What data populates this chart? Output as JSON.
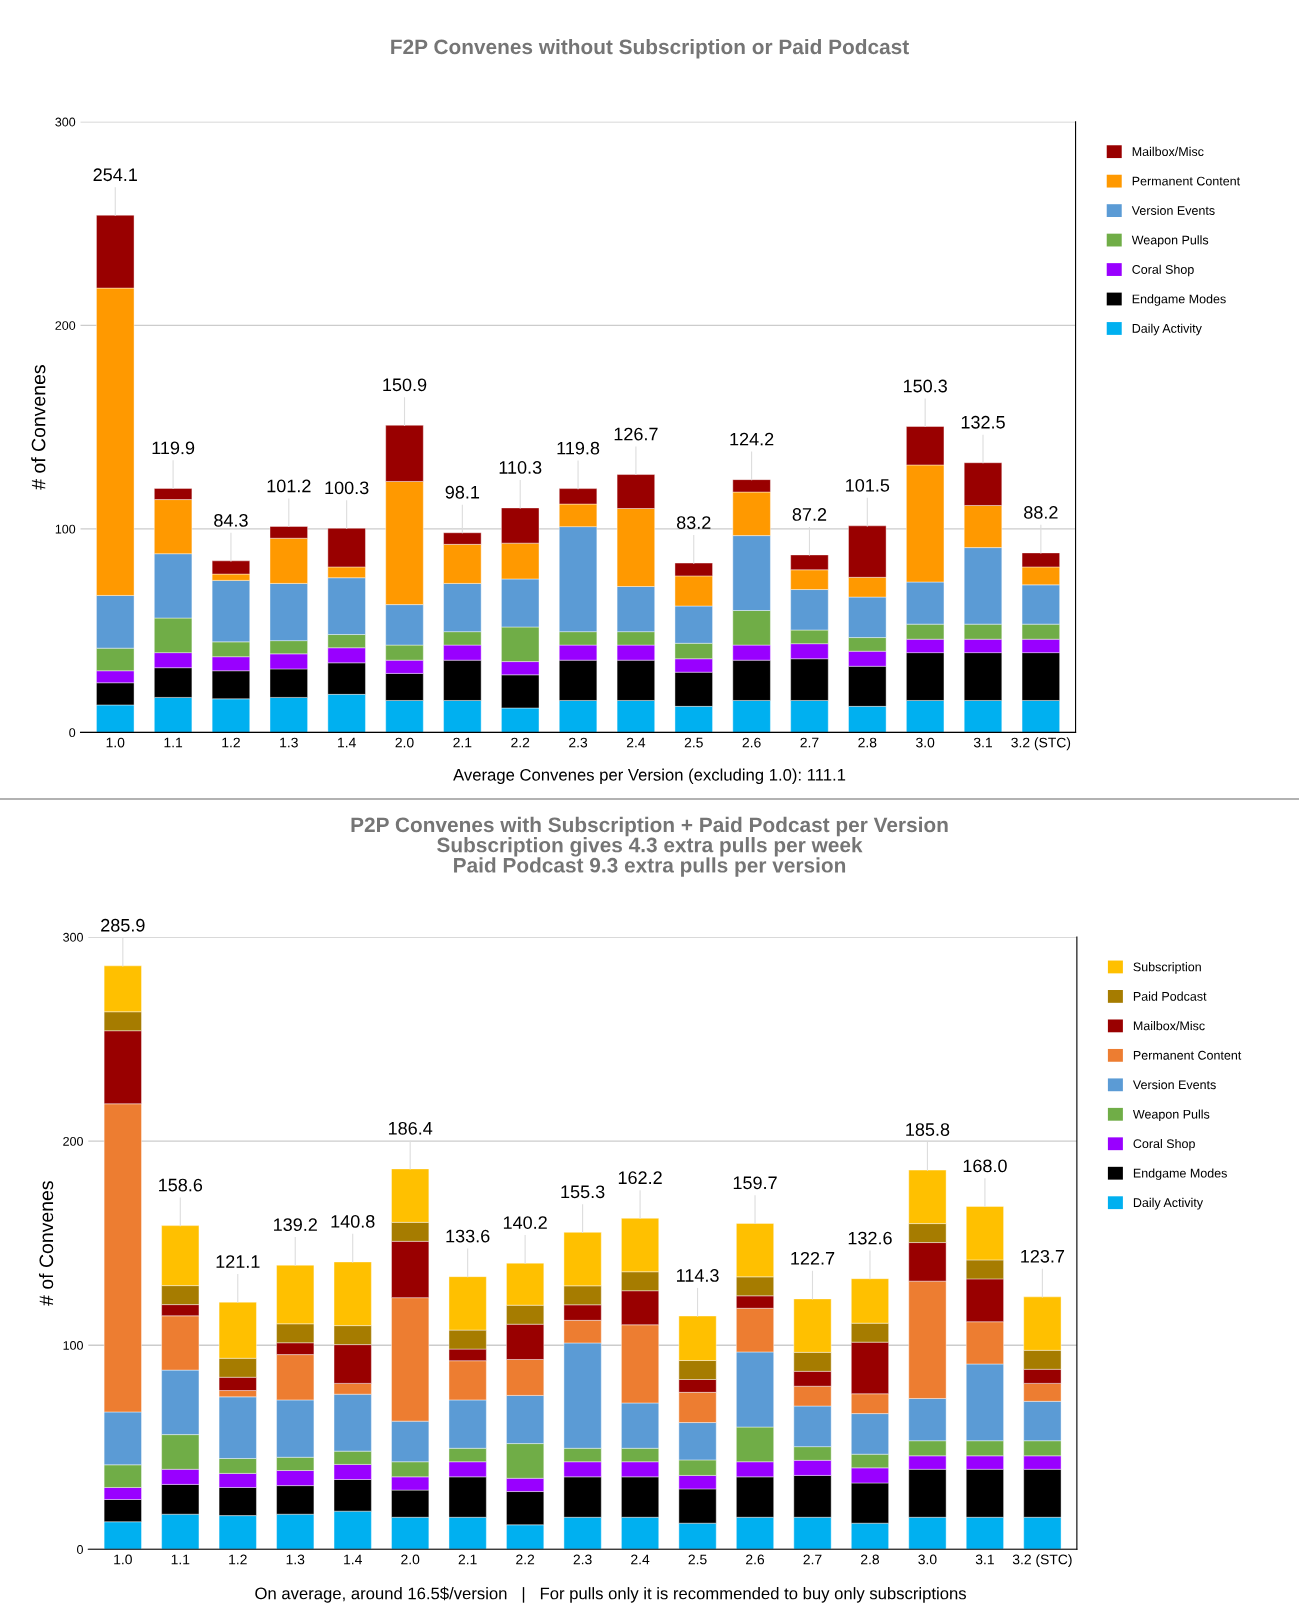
{
  "chart_data": [
    {
      "type": "bar",
      "stacked": true,
      "title": "F2P Convenes without Subscription or Paid Podcast",
      "ylabel": "# of Convenes",
      "categories": [
        "1.0",
        "1.1",
        "1.2",
        "1.3",
        "1.4",
        "2.0",
        "2.1",
        "2.2",
        "2.3",
        "2.4",
        "2.5",
        "2.6",
        "2.7",
        "2.8",
        "3.0",
        "3.1",
        "3.2 (STC)"
      ],
      "series": [
        {
          "name": "Daily Activity",
          "color": "#00b0f0",
          "values": [
            13.5,
            17.2,
            16.5,
            17.2,
            18.7,
            15.7,
            15.7,
            12.0,
            15.7,
            15.7,
            12.8,
            15.7,
            15.7,
            12.8,
            15.7,
            15.7,
            15.7
          ]
        },
        {
          "name": "Endgame Modes",
          "color": "#000000",
          "values": [
            10.9,
            14.6,
            13.8,
            14.0,
            15.5,
            13.3,
            19.8,
            16.3,
            19.8,
            19.8,
            16.8,
            19.8,
            20.5,
            19.7,
            23.5,
            23.5,
            23.5
          ]
        },
        {
          "name": "Coral Shop",
          "color": "#9900ff",
          "values": [
            5.9,
            7.4,
            6.9,
            7.4,
            7.4,
            6.5,
            7.4,
            6.5,
            7.4,
            7.4,
            6.6,
            7.4,
            7.4,
            7.4,
            6.6,
            6.6,
            6.6
          ]
        },
        {
          "name": "Weapon Pulls",
          "color": "#70ad47",
          "values": [
            11.1,
            17.0,
            7.3,
            6.5,
            6.5,
            7.4,
            6.6,
            17.0,
            6.6,
            6.6,
            7.6,
            17.0,
            6.7,
            6.7,
            7.4,
            7.4,
            7.4
          ]
        },
        {
          "name": "Version Events",
          "color": "#5b9bd5",
          "values": [
            25.9,
            31.6,
            30.2,
            28.1,
            27.9,
            19.9,
            23.7,
            23.6,
            51.6,
            22.2,
            18.3,
            36.8,
            19.9,
            19.9,
            20.7,
            37.6,
            19.3
          ]
        },
        {
          "name": "Permanent Content",
          "color": "#ff9900",
          "values": [
            151.0,
            26.6,
            3.1,
            22.2,
            5.3,
            60.5,
            19.2,
            17.6,
            11.1,
            38.3,
            14.8,
            21.4,
            9.7,
            9.7,
            57.5,
            20.7,
            8.8
          ]
        },
        {
          "name": "Mailbox/Misc",
          "color": "#990000",
          "values": [
            35.8,
            5.5,
            6.5,
            5.8,
            19.0,
            27.6,
            5.7,
            17.3,
            7.6,
            16.7,
            6.3,
            6.1,
            7.3,
            25.3,
            18.9,
            21.0,
            6.9
          ]
        }
      ],
      "totals": [
        "254.1",
        "119.9",
        "84.3",
        "101.2",
        "100.3",
        "150.9",
        "98.1",
        "110.3",
        "119.8",
        "126.7",
        "83.2",
        "124.2",
        "87.2",
        "101.5",
        "150.3",
        "132.5",
        "88.2"
      ],
      "ylim": [
        0,
        300
      ],
      "yticks": [
        0,
        100,
        200,
        300
      ],
      "grid": "y",
      "legend": "right",
      "annotations": [
        "Average Convenes per Version (excluding 1.0): 111.1"
      ]
    },
    {
      "type": "bar",
      "stacked": true,
      "title": "P2P Convenes with Subscription + Paid Podcast per Version\nSubscription gives 4.3 extra pulls per week\nPaid Podcast 9.3 extra pulls per version",
      "ylabel": "# of Convenes",
      "categories": [
        "1.0",
        "1.1",
        "1.2",
        "1.3",
        "1.4",
        "2.0",
        "2.1",
        "2.2",
        "2.3",
        "2.4",
        "2.5",
        "2.6",
        "2.7",
        "2.8",
        "3.0",
        "3.1",
        "3.2 (STC)"
      ],
      "series": [
        {
          "name": "Daily Activity",
          "color": "#00b0f0",
          "values": [
            13.5,
            17.2,
            16.5,
            17.2,
            18.7,
            15.7,
            15.7,
            12.0,
            15.7,
            15.7,
            12.8,
            15.7,
            15.7,
            12.8,
            15.7,
            15.7,
            15.7
          ]
        },
        {
          "name": "Endgame Modes",
          "color": "#000000",
          "values": [
            10.9,
            14.6,
            13.8,
            14.0,
            15.5,
            13.3,
            19.8,
            16.3,
            19.8,
            19.8,
            16.8,
            19.8,
            20.5,
            19.7,
            23.5,
            23.5,
            23.5
          ]
        },
        {
          "name": "Coral Shop",
          "color": "#9900ff",
          "values": [
            5.9,
            7.4,
            6.9,
            7.4,
            7.4,
            6.5,
            7.4,
            6.5,
            7.4,
            7.4,
            6.6,
            7.4,
            7.4,
            7.4,
            6.6,
            6.6,
            6.6
          ]
        },
        {
          "name": "Weapon Pulls",
          "color": "#70ad47",
          "values": [
            11.1,
            17.0,
            7.3,
            6.5,
            6.5,
            7.4,
            6.6,
            17.0,
            6.6,
            6.6,
            7.6,
            17.0,
            6.7,
            6.7,
            7.4,
            7.4,
            7.4
          ]
        },
        {
          "name": "Version Events",
          "color": "#5b9bd5",
          "values": [
            25.9,
            31.6,
            30.2,
            28.1,
            27.9,
            19.9,
            23.7,
            23.6,
            51.6,
            22.2,
            18.3,
            36.8,
            19.9,
            19.9,
            20.7,
            37.6,
            19.3
          ]
        },
        {
          "name": "Permanent Content",
          "color": "#ed7d31",
          "values": [
            151.0,
            26.6,
            3.1,
            22.2,
            5.3,
            60.5,
            19.2,
            17.6,
            11.1,
            38.3,
            14.8,
            21.4,
            9.7,
            9.7,
            57.5,
            20.7,
            8.8
          ]
        },
        {
          "name": "Mailbox/Misc",
          "color": "#990000",
          "values": [
            35.8,
            5.5,
            6.5,
            5.8,
            19.0,
            27.6,
            5.7,
            17.3,
            7.6,
            16.7,
            6.3,
            6.1,
            7.3,
            25.3,
            18.9,
            21.0,
            6.9
          ]
        },
        {
          "name": "Paid Podcast",
          "color": "#a67c00",
          "values": [
            9.3,
            9.3,
            9.3,
            9.3,
            9.3,
            9.3,
            9.3,
            9.3,
            9.3,
            9.3,
            9.3,
            9.3,
            9.3,
            9.3,
            9.3,
            9.3,
            9.3
          ]
        },
        {
          "name": "Subscription",
          "color": "#ffc000",
          "values": [
            22.5,
            29.4,
            27.5,
            28.7,
            31.2,
            26.2,
            26.2,
            20.6,
            26.2,
            26.2,
            21.8,
            26.2,
            26.2,
            21.8,
            26.2,
            26.2,
            26.2
          ]
        }
      ],
      "totals": [
        "285.9",
        "158.6",
        "121.1",
        "139.2",
        "140.8",
        "186.4",
        "133.6",
        "140.2",
        "155.3",
        "162.2",
        "114.3",
        "159.7",
        "122.7",
        "132.6",
        "185.8",
        "168.0",
        "123.7"
      ],
      "ylim": [
        0,
        300
      ],
      "yticks": [
        0,
        100,
        200,
        300
      ],
      "grid": "y",
      "legend": "right",
      "annotations": [
        "On average, around 16.5$/version   |   For pulls only it is recommended to buy only subscriptions"
      ]
    }
  ]
}
